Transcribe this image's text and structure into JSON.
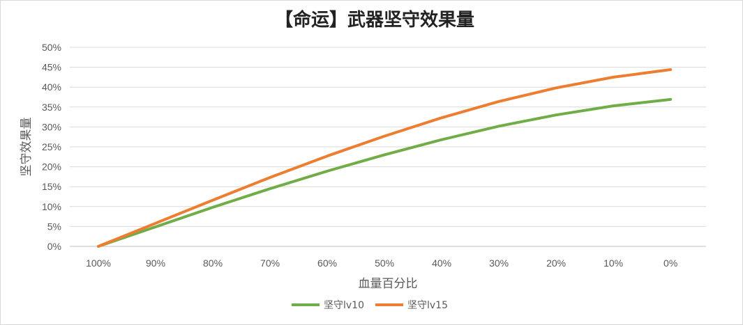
{
  "chart_data": {
    "type": "line",
    "title": "【命运】武器坚守效果量",
    "xlabel": "血量百分比",
    "ylabel": "坚守效果量",
    "categories": [
      "100%",
      "90%",
      "80%",
      "70%",
      "60%",
      "50%",
      "40%",
      "30%",
      "20%",
      "10%",
      "0%"
    ],
    "ylim": [
      0,
      50
    ],
    "yticks": [
      0,
      5,
      10,
      15,
      20,
      25,
      30,
      35,
      40,
      45,
      50
    ],
    "ytick_suffix": "%",
    "grid": true,
    "legend": "bottom",
    "series": [
      {
        "name": "坚守lv10",
        "color": "#70ad47",
        "values": [
          0,
          4.9,
          9.8,
          14.5,
          18.9,
          23.0,
          26.8,
          30.2,
          33.0,
          35.3,
          36.9
        ]
      },
      {
        "name": "坚守lv15",
        "color": "#ed7d31",
        "values": [
          0,
          5.8,
          11.6,
          17.3,
          22.7,
          27.7,
          32.3,
          36.4,
          39.8,
          42.5,
          44.4
        ]
      }
    ]
  }
}
